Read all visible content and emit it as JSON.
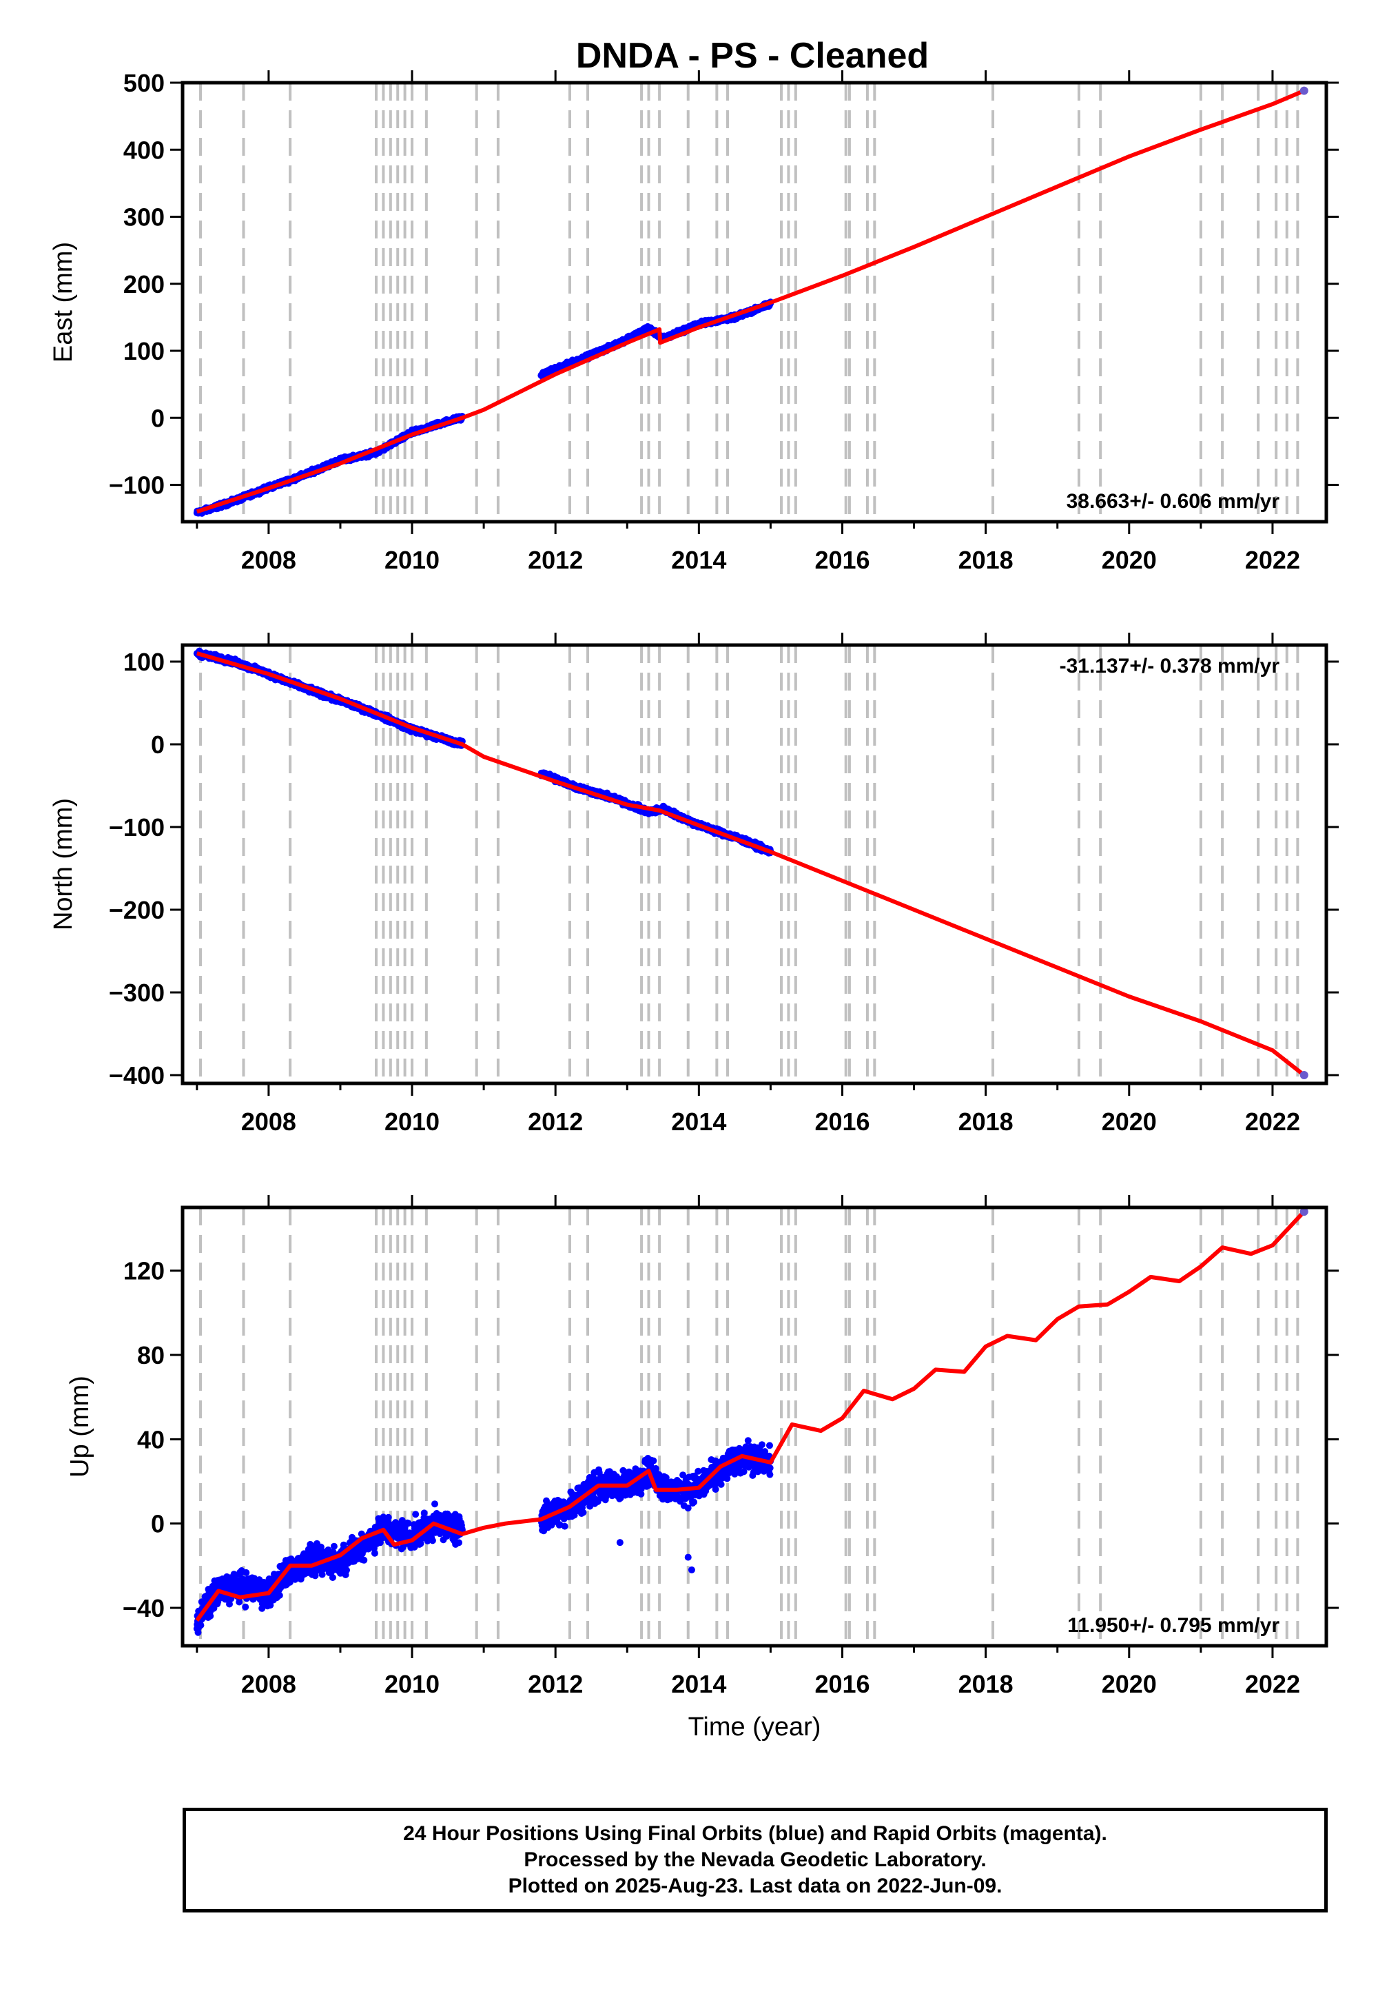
{
  "title": "DNDA  - PS - Cleaned",
  "footer": {
    "line1": "24 Hour Positions Using Final Orbits (blue) and Rapid Orbits (magenta).",
    "line2": "Processed by the Nevada Geodetic Laboratory.",
    "line3": "Plotted on 2025-Aug-23. Last data on 2022-Jun-09."
  },
  "colors": {
    "data_points": "#0000ff",
    "model_fit": "#ff0000",
    "event_lines": "#c0c0c0",
    "last_point": "#6a5acd"
  },
  "chart_data": [
    {
      "type": "scatter",
      "ylabel": "East (mm)",
      "xlabel": "",
      "xlim": [
        2006.8,
        2022.75
      ],
      "ylim": [
        -155,
        500
      ],
      "yticks": [
        -100,
        0,
        100,
        200,
        300,
        400,
        500
      ],
      "xticks": [
        2008,
        2010,
        2012,
        2014,
        2016,
        2018,
        2020,
        2022
      ],
      "grid": false,
      "rate_label": "38.663+/- 0.606 mm/yr",
      "rate_position": "bottom-right",
      "series": [
        {
          "name": "Final Orbits",
          "kind": "points",
          "color": "blue",
          "x": [
            2007.0,
            2007.5,
            2008.0,
            2008.5,
            2009.0,
            2009.5,
            2010.0,
            2010.5,
            2010.7,
            2011.8,
            2012.3,
            2012.8,
            2013.3,
            2013.5,
            2014.0,
            2014.5,
            2015.0
          ],
          "y": [
            -142,
            -125,
            -104,
            -85,
            -63,
            -52,
            -22,
            -5,
            0,
            64,
            85,
            107,
            134,
            118,
            140,
            150,
            170
          ]
        },
        {
          "name": "Model",
          "kind": "line",
          "color": "red",
          "x": [
            2007.0,
            2008.0,
            2009.0,
            2010.0,
            2010.7,
            2011.0,
            2012.0,
            2013.0,
            2013.45,
            2013.46,
            2014.0,
            2015.0,
            2016.0,
            2017.0,
            2018.0,
            2019.0,
            2020.0,
            2021.0,
            2022.0,
            2022.44
          ],
          "y": [
            -140,
            -105,
            -68,
            -25,
            0,
            12,
            65,
            112,
            132,
            112,
            135,
            172,
            212,
            255,
            300,
            345,
            390,
            430,
            468,
            488
          ]
        }
      ],
      "event_years": [
        2007.05,
        2007.65,
        2008.3,
        2009.5,
        2009.6,
        2009.7,
        2009.8,
        2009.9,
        2010.0,
        2010.2,
        2010.9,
        2011.2,
        2012.2,
        2012.45,
        2013.2,
        2013.3,
        2013.45,
        2013.85,
        2014.25,
        2014.4,
        2015.15,
        2015.25,
        2015.35,
        2016.05,
        2016.1,
        2016.35,
        2016.45,
        2018.1,
        2019.3,
        2019.6,
        2021.0,
        2021.3,
        2021.8,
        2022.05,
        2022.2,
        2022.35
      ]
    },
    {
      "type": "scatter",
      "ylabel": "North (mm)",
      "xlabel": "",
      "xlim": [
        2006.8,
        2022.75
      ],
      "ylim": [
        -410,
        120
      ],
      "yticks": [
        -400,
        -300,
        -200,
        -100,
        0,
        100
      ],
      "xticks": [
        2008,
        2010,
        2012,
        2014,
        2016,
        2018,
        2020,
        2022
      ],
      "grid": false,
      "rate_label": "-31.137+/- 0.378 mm/yr",
      "rate_position": "top-right",
      "series": [
        {
          "name": "Final Orbits",
          "kind": "points",
          "color": "blue",
          "x": [
            2007.0,
            2007.5,
            2008.0,
            2008.5,
            2009.0,
            2009.5,
            2010.0,
            2010.5,
            2010.7,
            2011.8,
            2012.3,
            2012.8,
            2013.3,
            2013.5,
            2014.0,
            2014.5,
            2015.0
          ],
          "y": [
            110,
            100,
            85,
            68,
            53,
            37,
            18,
            5,
            0,
            -35,
            -52,
            -65,
            -82,
            -78,
            -98,
            -112,
            -130
          ]
        },
        {
          "name": "Model",
          "kind": "line",
          "color": "red",
          "x": [
            2007.0,
            2008.0,
            2009.0,
            2010.0,
            2010.7,
            2011.0,
            2012.0,
            2013.0,
            2013.45,
            2014.0,
            2015.0,
            2016.0,
            2017.0,
            2018.0,
            2019.0,
            2020.0,
            2021.0,
            2022.0,
            2022.44
          ],
          "y": [
            110,
            85,
            55,
            20,
            0,
            -15,
            -45,
            -73,
            -80,
            -98,
            -130,
            -165,
            -200,
            -235,
            -270,
            -305,
            -335,
            -370,
            -400
          ]
        }
      ],
      "event_years": [
        2007.05,
        2007.65,
        2008.3,
        2009.5,
        2009.6,
        2009.7,
        2009.8,
        2009.9,
        2010.0,
        2010.2,
        2010.9,
        2011.2,
        2012.2,
        2012.45,
        2013.2,
        2013.3,
        2013.45,
        2013.85,
        2014.25,
        2014.4,
        2015.15,
        2015.25,
        2015.35,
        2016.05,
        2016.1,
        2016.35,
        2016.45,
        2018.1,
        2019.3,
        2019.6,
        2021.0,
        2021.3,
        2021.8,
        2022.05,
        2022.2,
        2022.35
      ]
    },
    {
      "type": "scatter",
      "ylabel": "Up (mm)",
      "xlabel": "Time (year)",
      "xlim": [
        2006.8,
        2022.75
      ],
      "ylim": [
        -58,
        150
      ],
      "yticks": [
        -40,
        0,
        40,
        80,
        120
      ],
      "xticks": [
        2008,
        2010,
        2012,
        2014,
        2016,
        2018,
        2020,
        2022
      ],
      "grid": false,
      "rate_label": "11.950+/- 0.795 mm/yr",
      "rate_position": "bottom-right",
      "series": [
        {
          "name": "Final Orbits",
          "kind": "points",
          "color": "blue",
          "x": [
            2007.0,
            2007.3,
            2007.6,
            2008.0,
            2008.3,
            2008.6,
            2009.0,
            2009.3,
            2009.6,
            2010.0,
            2010.3,
            2010.7,
            2011.8,
            2012.2,
            2012.6,
            2013.0,
            2013.3,
            2013.6,
            2014.0,
            2014.3,
            2014.6,
            2015.0
          ],
          "y": [
            -46,
            -32,
            -30,
            -33,
            -22,
            -18,
            -18,
            -10,
            -3,
            -6,
            0,
            -2,
            2,
            8,
            18,
            18,
            25,
            15,
            17,
            25,
            32,
            29
          ]
        },
        {
          "name": "Model",
          "kind": "line",
          "color": "red",
          "x": [
            2007.0,
            2007.3,
            2007.6,
            2008.0,
            2008.3,
            2008.6,
            2009.0,
            2009.3,
            2009.6,
            2009.75,
            2010.0,
            2010.3,
            2010.7,
            2011.0,
            2011.3,
            2011.8,
            2012.2,
            2012.6,
            2013.0,
            2013.3,
            2013.4,
            2013.7,
            2014.0,
            2014.3,
            2014.6,
            2015.0,
            2015.3,
            2015.7,
            2016.0,
            2016.3,
            2016.7,
            2017.0,
            2017.3,
            2017.7,
            2018.0,
            2018.3,
            2018.7,
            2019.0,
            2019.3,
            2019.7,
            2020.0,
            2020.3,
            2020.7,
            2021.0,
            2021.3,
            2021.7,
            2022.0,
            2022.44
          ],
          "y": [
            -46,
            -32,
            -35,
            -33,
            -20,
            -20,
            -15,
            -7,
            -3,
            -10,
            -8,
            0,
            -5,
            -2,
            0,
            2,
            8,
            18,
            18,
            25,
            16,
            16,
            17,
            27,
            32,
            29,
            47,
            44,
            50,
            63,
            59,
            64,
            73,
            72,
            84,
            89,
            87,
            97,
            103,
            104,
            110,
            117,
            115,
            122,
            131,
            128,
            132,
            148
          ]
        }
      ],
      "outliers": {
        "x": [
          2012.9,
          2013.85,
          2013.9
        ],
        "y": [
          -9,
          -16,
          -22
        ]
      },
      "event_years": [
        2007.05,
        2007.65,
        2008.3,
        2009.5,
        2009.6,
        2009.7,
        2009.8,
        2009.9,
        2010.0,
        2010.2,
        2010.9,
        2011.2,
        2012.2,
        2012.45,
        2013.2,
        2013.3,
        2013.45,
        2013.85,
        2014.25,
        2014.4,
        2015.15,
        2015.25,
        2015.35,
        2016.05,
        2016.1,
        2016.35,
        2016.45,
        2018.1,
        2019.3,
        2019.6,
        2021.0,
        2021.3,
        2021.8,
        2022.05,
        2022.2,
        2022.35
      ]
    }
  ]
}
